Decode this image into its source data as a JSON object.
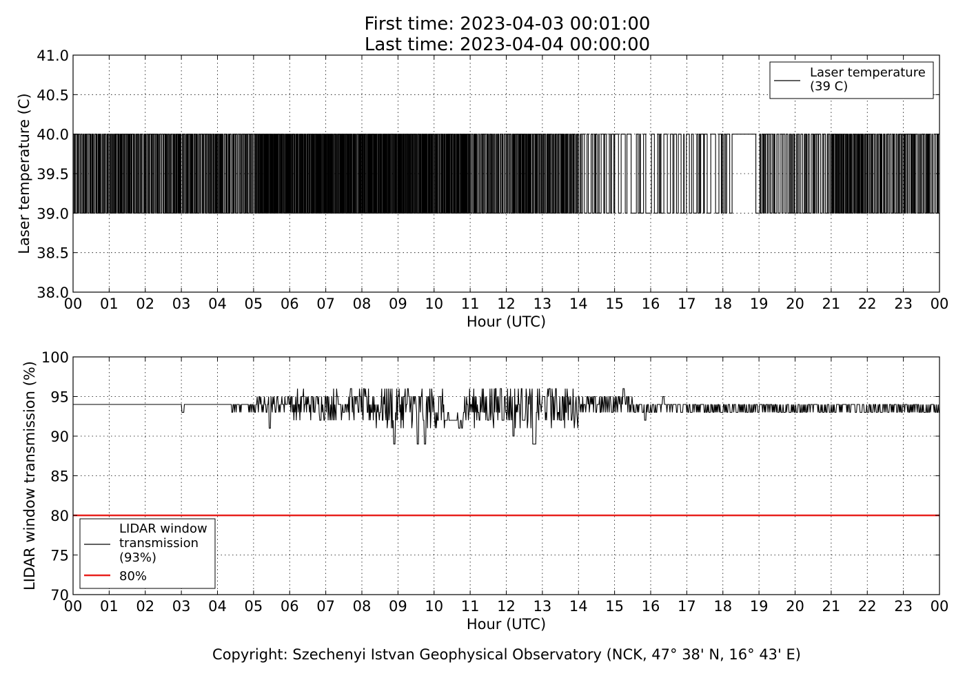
{
  "title_line1": "First time: 2023-04-03 00:01:00",
  "title_line2": "Last time: 2023-04-04 00:00:00",
  "copyright": "Copyright: Szechenyi Istvan Geophysical Observatory (NCK, 47° 38' N, 16° 43' E)",
  "chart_data": [
    {
      "type": "line",
      "ylabel": "Laser temperature (C)",
      "xlabel": "Hour (UTC)",
      "ylim": [
        38.0,
        41.0
      ],
      "yticks": [
        "41.0",
        "40.5",
        "40.0",
        "39.5",
        "39.0",
        "38.5",
        "38.0"
      ],
      "xlim": [
        0,
        24
      ],
      "xticks": [
        "00",
        "01",
        "02",
        "03",
        "04",
        "05",
        "06",
        "07",
        "08",
        "09",
        "10",
        "11",
        "12",
        "13",
        "14",
        "15",
        "16",
        "17",
        "18",
        "19",
        "20",
        "21",
        "22",
        "23",
        "00"
      ],
      "grid": true,
      "legend_position": "top-right",
      "series": [
        {
          "name": "Laser temperature",
          "legend_lines": [
            "Laser temperature",
            "(39 C)"
          ],
          "color": "#000000",
          "values_range": [
            39,
            40
          ],
          "sample": {
            "x_hours": [
              0.0,
              0.05,
              0.1,
              0.2,
              0.3,
              0.4,
              15.0,
              15.5,
              18.2,
              18.8,
              24.0
            ],
            "y": [
              39,
              40,
              39,
              40,
              39,
              40,
              39,
              39,
              39,
              40,
              40
            ]
          }
        }
      ]
    },
    {
      "type": "line",
      "ylabel": "LIDAR window transmission (%)",
      "xlabel": "Hour (UTC)",
      "ylim": [
        70,
        100
      ],
      "yticks": [
        "100",
        "95",
        "90",
        "85",
        "80",
        "75",
        "70"
      ],
      "xlim": [
        0,
        24
      ],
      "xticks": [
        "00",
        "01",
        "02",
        "03",
        "04",
        "05",
        "06",
        "07",
        "08",
        "09",
        "10",
        "11",
        "12",
        "13",
        "14",
        "15",
        "16",
        "17",
        "18",
        "19",
        "20",
        "21",
        "22",
        "23",
        "00"
      ],
      "grid": true,
      "legend_position": "bottom-left",
      "series": [
        {
          "name": "LIDAR window transmission",
          "legend_lines": [
            "LIDAR window",
            "transmission",
            "(93%)"
          ],
          "color": "#000000",
          "sample": {
            "x_hours": [
              0.0,
              3.0,
              3.05,
              3.1,
              4.3,
              5.5,
              8.9,
              9.6,
              10.3,
              10.7,
              12.0,
              12.8,
              15.2,
              17.0,
              24.0
            ],
            "y": [
              94,
              94,
              93,
              94,
              94,
              91,
              89,
              89,
              92,
              91,
              96,
              89,
              96,
              94,
              93
            ]
          }
        },
        {
          "name": "80%",
          "legend_lines": [
            "80%"
          ],
          "color": "#e8201c",
          "values": [
            80,
            80
          ],
          "x_hours": [
            0,
            24
          ]
        }
      ]
    }
  ]
}
